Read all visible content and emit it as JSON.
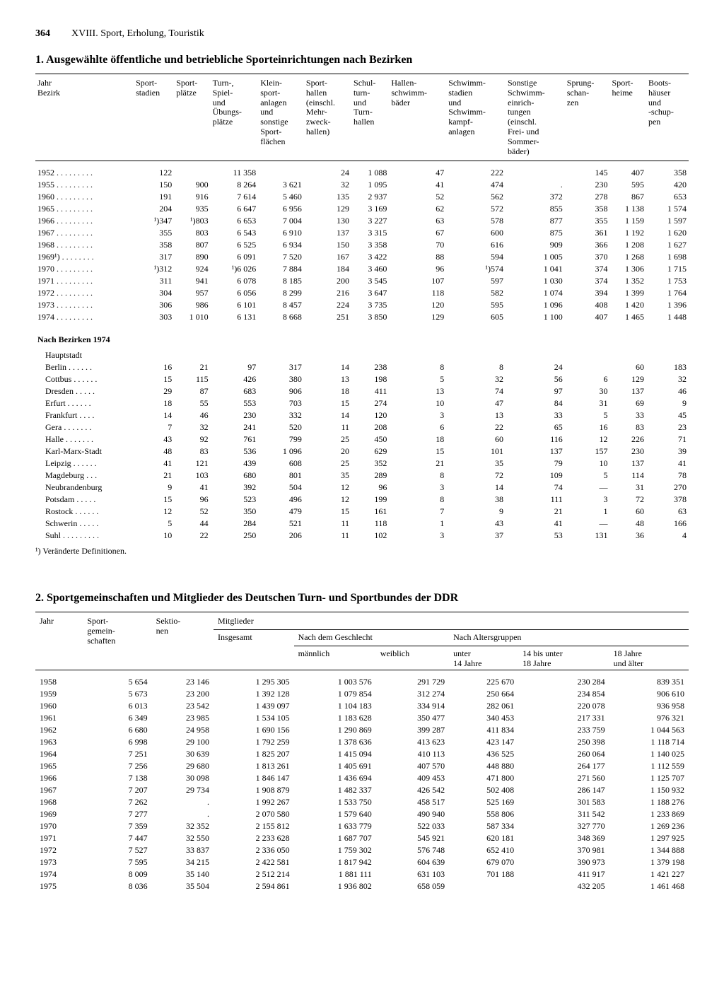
{
  "page": {
    "number": "364",
    "chapter": "XVIII. Sport, Erholung, Touristik"
  },
  "section1": {
    "title": "1. Ausgewählte öffentliche und betriebliche Sporteinrichtungen nach Bezirken",
    "columns": [
      "Jahr\nBezirk",
      "Sport-\nstadien",
      "Sport-\nplätze",
      "Turn-,\nSpiel-\nund\nÜbungs-\nplätze",
      "Klein-\nsport-\nanlagen\nund\nsonstige\nSport-\nflächen",
      "Sport-\nhallen\n(einschl.\nMehr-\nzweck-\nhallen)",
      "Schul-\nturn-\nund\nTurn-\nhallen",
      "Hallen-\nschwimm-\nbäder",
      "Schwimm-\nstadien\nund\nSchwimm-\nkampf-\nanlagen",
      "Sonstige\nSchwimm-\neinrich-\ntungen\n(einschl.\nFrei- und\nSommer-\nbäder)",
      "Sprung-\nschan-\nzen",
      "Sport-\nheime",
      "Boots-\nhäuser\nund\n-schup-\npen"
    ],
    "years": [
      [
        "1952 . . . . . . . . .",
        "122",
        "",
        "11 358",
        "",
        "24",
        "1 088",
        "47",
        "222",
        "",
        "145",
        "407",
        "358"
      ],
      [
        "1955 . . . . . . . . .",
        "150",
        "900",
        "8 264",
        "3 621",
        "32",
        "1 095",
        "41",
        "474",
        ".",
        "230",
        "595",
        "420"
      ],
      [
        "1960 . . . . . . . . .",
        "191",
        "916",
        "7 614",
        "5 460",
        "135",
        "2 937",
        "52",
        "562",
        "372",
        "278",
        "867",
        "653"
      ],
      [
        "1965 . . . . . . . . .",
        "204",
        "935",
        "6 647",
        "6 956",
        "129",
        "3 169",
        "62",
        "572",
        "855",
        "358",
        "1 138",
        "1 574"
      ],
      [
        "1966 . . . . . . . . .",
        "¹)347",
        "¹)803",
        "6 653",
        "7 004",
        "130",
        "3 227",
        "63",
        "578",
        "877",
        "355",
        "1 159",
        "1 597"
      ],
      [
        "1967 . . . . . . . . .",
        "355",
        "803",
        "6 543",
        "6 910",
        "137",
        "3 315",
        "67",
        "600",
        "875",
        "361",
        "1 192",
        "1 620"
      ],
      [
        "1968 . . . . . . . . .",
        "358",
        "807",
        "6 525",
        "6 934",
        "150",
        "3 358",
        "70",
        "616",
        "909",
        "366",
        "1 208",
        "1 627"
      ],
      [
        "1969¹) . . . . . . . .",
        "317",
        "890",
        "6 091",
        "7 520",
        "167",
        "3 422",
        "88",
        "594",
        "1 005",
        "370",
        "1 268",
        "1 698"
      ],
      [
        "1970 . . . . . . . . .",
        "¹)312",
        "924",
        "¹)6 026",
        "7 884",
        "184",
        "3 460",
        "96",
        "¹)574",
        "1 041",
        "374",
        "1 306",
        "1 715"
      ],
      [
        "1971 . . . . . . . . .",
        "311",
        "941",
        "6 078",
        "8 185",
        "200",
        "3 545",
        "107",
        "597",
        "1 030",
        "374",
        "1 352",
        "1 753"
      ],
      [
        "1972 . . . . . . . . .",
        "304",
        "957",
        "6 056",
        "8 299",
        "216",
        "3 647",
        "118",
        "582",
        "1 074",
        "394",
        "1 399",
        "1 764"
      ],
      [
        "1973 . . . . . . . . .",
        "306",
        "986",
        "6 101",
        "8 457",
        "224",
        "3 735",
        "120",
        "595",
        "1 096",
        "408",
        "1 420",
        "1 396"
      ],
      [
        "1974 . . . . . . . . .",
        "303",
        "1 010",
        "6 131",
        "8 668",
        "251",
        "3 850",
        "129",
        "605",
        "1 100",
        "407",
        "1 465",
        "1 448"
      ]
    ],
    "sub_heading": "Nach Bezirken 1974",
    "sub_sub": "Hauptstadt",
    "districts": [
      [
        "Berlin  . . . . . .",
        "16",
        "21",
        "97",
        "317",
        "14",
        "238",
        "8",
        "8",
        "24",
        "",
        "60",
        "183"
      ],
      [
        "Cottbus . . . . . .",
        "15",
        "115",
        "426",
        "380",
        "13",
        "198",
        "5",
        "32",
        "56",
        "6",
        "129",
        "32"
      ],
      [
        "Dresden  . . . . .",
        "29",
        "87",
        "683",
        "906",
        "18",
        "411",
        "13",
        "74",
        "97",
        "30",
        "137",
        "46"
      ],
      [
        "Erfurt  . . . . . .",
        "18",
        "55",
        "553",
        "703",
        "15",
        "274",
        "10",
        "47",
        "84",
        "31",
        "69",
        "9"
      ],
      [
        "Frankfurt  . . . .",
        "14",
        "46",
        "230",
        "332",
        "14",
        "120",
        "3",
        "13",
        "33",
        "5",
        "33",
        "45"
      ],
      [
        "Gera  . . . . . . .",
        "7",
        "32",
        "241",
        "520",
        "11",
        "208",
        "6",
        "22",
        "65",
        "16",
        "83",
        "23"
      ],
      [
        "Halle  . . . . . . .",
        "43",
        "92",
        "761",
        "799",
        "25",
        "450",
        "18",
        "60",
        "116",
        "12",
        "226",
        "71"
      ],
      [
        "Karl-Marx-Stadt",
        "48",
        "83",
        "536",
        "1 096",
        "20",
        "629",
        "15",
        "101",
        "137",
        "157",
        "230",
        "39"
      ],
      [
        "Leipzig  . . . . . .",
        "41",
        "121",
        "439",
        "608",
        "25",
        "352",
        "21",
        "35",
        "79",
        "10",
        "137",
        "41"
      ],
      [
        "Magdeburg  . . .",
        "21",
        "103",
        "680",
        "801",
        "35",
        "289",
        "8",
        "72",
        "109",
        "5",
        "114",
        "78"
      ],
      [
        "Neubrandenburg",
        "9",
        "41",
        "392",
        "504",
        "12",
        "96",
        "3",
        "14",
        "74",
        "—",
        "31",
        "270"
      ],
      [
        "Potsdam  . . . . .",
        "15",
        "96",
        "523",
        "496",
        "12",
        "199",
        "8",
        "38",
        "111",
        "3",
        "72",
        "378"
      ],
      [
        "Rostock . . . . . .",
        "12",
        "52",
        "350",
        "479",
        "15",
        "161",
        "7",
        "9",
        "21",
        "1",
        "60",
        "63"
      ],
      [
        "Schwerin . . . . .",
        "5",
        "44",
        "284",
        "521",
        "11",
        "118",
        "1",
        "43",
        "41",
        "—",
        "48",
        "166"
      ],
      [
        "Suhl . . . . . . . . .",
        "10",
        "22",
        "250",
        "206",
        "11",
        "102",
        "3",
        "37",
        "53",
        "131",
        "36",
        "4"
      ]
    ],
    "footnote": "¹) Veränderte Definitionen."
  },
  "section2": {
    "title": "2. Sportgemeinschaften und Mitglieder des Deutschen Turn- und Sportbundes der DDR",
    "head": {
      "c1": "Jahr",
      "c2": "Sport-\ngemein-\nschaften",
      "c3": "Sektio-\nnen",
      "c4": "Mitglieder",
      "c4a": "Insgesamt",
      "c4b": "Nach dem Geschlecht",
      "c4b1": "männlich",
      "c4b2": "weiblich",
      "c4c": "Nach Altersgruppen",
      "c4c1": "unter\n14 Jahre",
      "c4c2": "14 bis unter\n18 Jahre",
      "c4c3": "18 Jahre\nund älter"
    },
    "rows": [
      [
        "1958",
        "5 654",
        "23 146",
        "1 295 305",
        "1 003 576",
        "291 729",
        "225 670",
        "230 284",
        "839 351"
      ],
      [
        "1959",
        "5 673",
        "23 200",
        "1 392 128",
        "1 079 854",
        "312 274",
        "250 664",
        "234 854",
        "906 610"
      ],
      [
        "1960",
        "6 013",
        "23 542",
        "1 439 097",
        "1 104 183",
        "334 914",
        "282 061",
        "220 078",
        "936 958"
      ],
      [
        "1961",
        "6 349",
        "23 985",
        "1 534 105",
        "1 183 628",
        "350 477",
        "340 453",
        "217 331",
        "976 321"
      ],
      [
        "1962",
        "6 680",
        "24 958",
        "1 690 156",
        "1 290 869",
        "399 287",
        "411 834",
        "233 759",
        "1 044 563"
      ],
      [
        "1963",
        "6 998",
        "29 100",
        "1 792 259",
        "1 378 636",
        "413 623",
        "423 147",
        "250 398",
        "1 118 714"
      ],
      [
        "1964",
        "7 251",
        "30 639",
        "1 825 207",
        "1 415 094",
        "410 113",
        "436 525",
        "260 064",
        "1 140 025"
      ],
      [
        "1965",
        "7 256",
        "29 680",
        "1 813 261",
        "1 405 691",
        "407 570",
        "448 880",
        "264 177",
        "1 112 559"
      ],
      [
        "1966",
        "7 138",
        "30 098",
        "1 846 147",
        "1 436 694",
        "409 453",
        "471 800",
        "271 560",
        "1 125 707"
      ],
      [
        "1967",
        "7 207",
        "29 734",
        "1 908 879",
        "1 482 337",
        "426 542",
        "502 408",
        "286 147",
        "1 150 932"
      ],
      [
        "1968",
        "7 262",
        ".",
        "1 992 267",
        "1 533 750",
        "458 517",
        "525 169",
        "301 583",
        "1 188 276"
      ],
      [
        "1969",
        "7 277",
        ".",
        "2 070 580",
        "1 579 640",
        "490 940",
        "558 806",
        "311 542",
        "1 233 869"
      ],
      [
        "1970",
        "7 359",
        "32 352",
        "2 155 812",
        "1 633 779",
        "522 033",
        "587 334",
        "327 770",
        "1 269 236"
      ],
      [
        "1971",
        "7 447",
        "32 550",
        "2 233 628",
        "1 687 707",
        "545 921",
        "620 181",
        "348 369",
        "1 297 925"
      ],
      [
        "1972",
        "7 527",
        "33 837",
        "2 336 050",
        "1 759 302",
        "576 748",
        "652 410",
        "370 981",
        "1 344 888"
      ],
      [
        "1973",
        "7 595",
        "34 215",
        "2 422 581",
        "1 817 942",
        "604 639",
        "679 070",
        "390 973",
        "1 379 198"
      ],
      [
        "1974",
        "8 009",
        "35 140",
        "2 512 214",
        "1 881 111",
        "631 103",
        "701 188",
        "411 917",
        "1 421 227"
      ],
      [
        "1975",
        "8 036",
        "35 504",
        "2 594 861",
        "1 936 802",
        "658 059",
        "",
        "432 205",
        "1 461 468"
      ]
    ]
  }
}
